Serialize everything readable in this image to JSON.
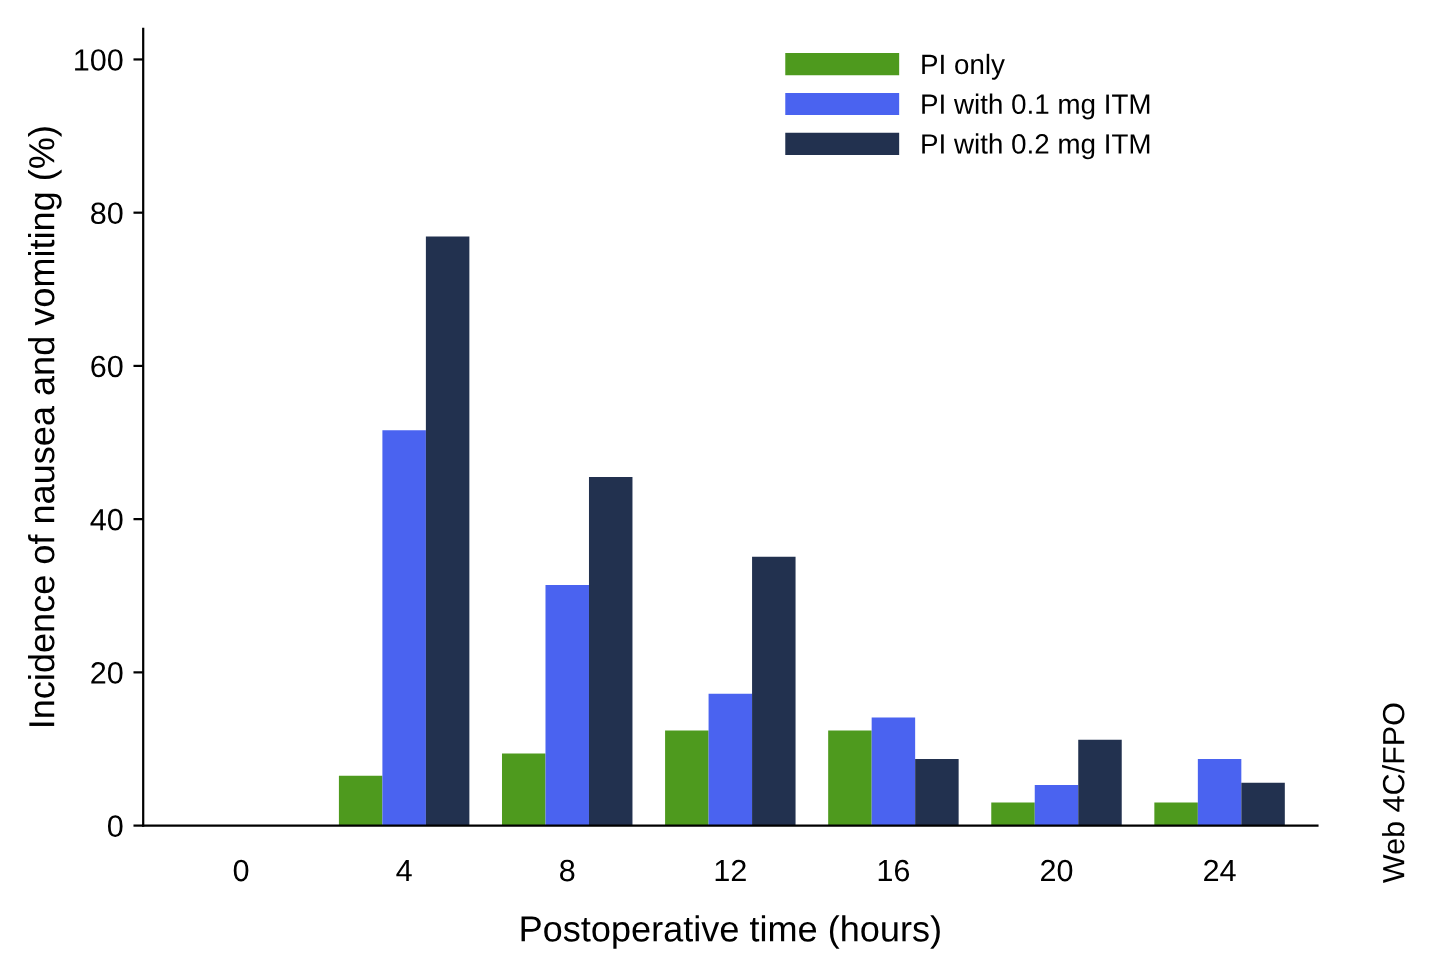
{
  "chart_data": {
    "type": "bar",
    "xlabel": "Postoperative time (hours)",
    "ylabel": "Incidence of nausea and vomiting (%)",
    "categories": [
      "0",
      "4",
      "8",
      "12",
      "16",
      "20",
      "24"
    ],
    "series": [
      {
        "name": "PI only",
        "color": "#4e9a1e",
        "values": [
          0,
          6.5,
          9.4,
          12.4,
          12.4,
          3.0,
          3.0
        ]
      },
      {
        "name": "PI with 0.1 mg ITM",
        "color": "#4a63f0",
        "values": [
          0,
          51.6,
          31.4,
          17.2,
          14.1,
          5.3,
          8.7
        ]
      },
      {
        "name": "PI with 0.2 mg ITM",
        "color": "#22314f",
        "values": [
          0,
          76.9,
          45.5,
          35.1,
          8.7,
          11.2,
          5.6
        ]
      }
    ],
    "ylim": [
      0,
      104
    ],
    "yticks": [
      0,
      20,
      40,
      60,
      80,
      100
    ],
    "grid": false,
    "legend": "top right",
    "annotations": [
      "Web 4C/FPO"
    ]
  }
}
